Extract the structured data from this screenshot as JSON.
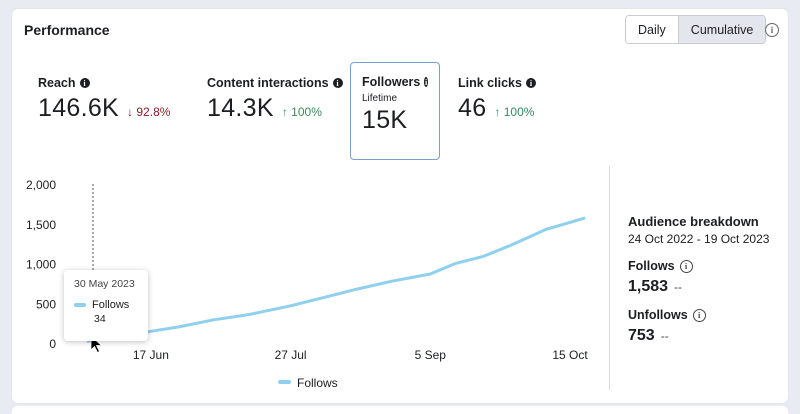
{
  "header": {
    "title": "Performance",
    "toggle": [
      "Daily",
      "Cumulative"
    ],
    "toggle_active": "Cumulative",
    "help_icon": "info-outline-icon"
  },
  "metrics": [
    {
      "label": "Reach",
      "value": "146.6K",
      "delta": "↓ 92.8%",
      "delta_dir": "down"
    },
    {
      "label": "Content interactions",
      "value": "14.3K",
      "delta": "↑ 100%",
      "delta_dir": "up"
    },
    {
      "label": "Followers",
      "sub": "Lifetime",
      "value": "15K",
      "selected": true
    },
    {
      "label": "Link clicks",
      "value": "46",
      "delta": "↑ 100%",
      "delta_dir": "up"
    }
  ],
  "tooltip": {
    "date": "30 May 2023",
    "series": "Follows",
    "value": "34"
  },
  "audience": {
    "title": "Audience breakdown",
    "range": "24 Oct 2022 - 19 Oct 2023",
    "follows_label": "Follows",
    "follows_value": "1,583",
    "follows_delta": "--",
    "unfollows_label": "Unfollows",
    "unfollows_value": "753",
    "unfollows_delta": "--"
  },
  "colors": {
    "line": "#8fd0ef",
    "selected_border": "#7b9fc9",
    "down": "#8a1c2b",
    "up": "#3a8a5f"
  },
  "chart_data": {
    "type": "line",
    "ylim": [
      0,
      2000
    ],
    "yticks": [
      0,
      500,
      1000,
      1500,
      2000
    ],
    "ytick_labels": [
      "0",
      "500",
      "1,000",
      "1,500",
      "2,000"
    ],
    "xtick_labels": [
      "17 Jun",
      "27 Jul",
      "5 Sep",
      "15 Oct"
    ],
    "legend": [
      "Follows"
    ],
    "legend_position": "bottom",
    "series": [
      {
        "name": "Follows",
        "x": [
          "2023-05-30",
          "2023-06-05",
          "2023-06-10",
          "2023-06-17",
          "2023-06-25",
          "2023-07-05",
          "2023-07-15",
          "2023-07-27",
          "2023-08-05",
          "2023-08-15",
          "2023-08-25",
          "2023-09-05",
          "2023-09-12",
          "2023-09-20",
          "2023-09-28",
          "2023-10-03",
          "2023-10-08",
          "2023-10-15",
          "2023-10-19"
        ],
        "values": [
          34,
          80,
          110,
          160,
          215,
          305,
          370,
          480,
          580,
          690,
          790,
          880,
          1010,
          1100,
          1240,
          1340,
          1440,
          1530,
          1583
        ]
      }
    ]
  }
}
